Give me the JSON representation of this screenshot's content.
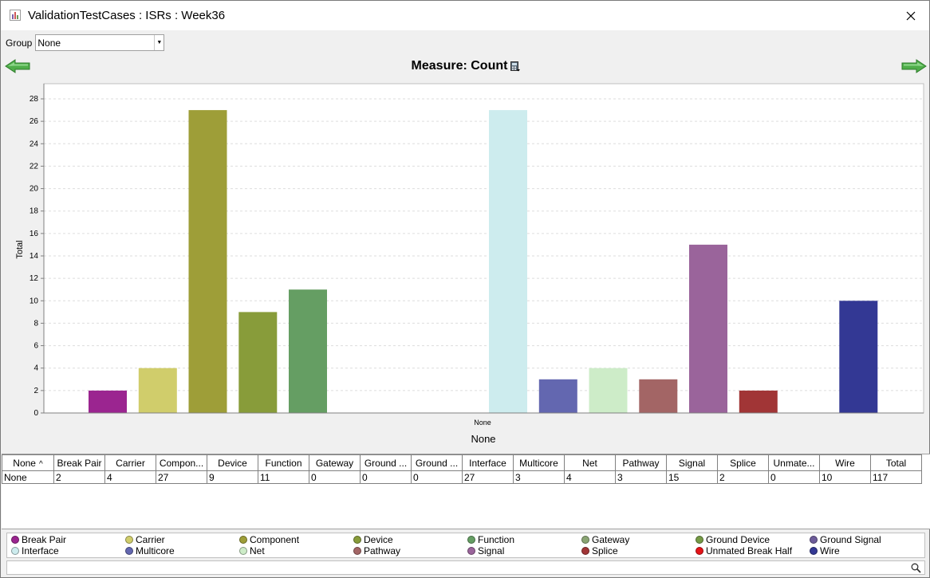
{
  "window": {
    "title": "ValidationTestCases : ISRs : Week36"
  },
  "group": {
    "label": "Group",
    "value": "None"
  },
  "measure": {
    "text": "Measure: Count"
  },
  "chart_data": {
    "type": "bar",
    "xlabel": "None",
    "ylabel": "Total",
    "ylim": [
      0,
      28
    ],
    "yticks": [
      0,
      2,
      4,
      6,
      8,
      10,
      12,
      14,
      16,
      18,
      20,
      22,
      24,
      26,
      28
    ],
    "categories": [
      "None"
    ],
    "grid": true,
    "series": [
      {
        "name": "Break Pair",
        "values": [
          2
        ],
        "color": "#9b2590"
      },
      {
        "name": "Carrier",
        "values": [
          4
        ],
        "color": "#d0cd6b"
      },
      {
        "name": "Component",
        "values": [
          27
        ],
        "color": "#9e9e38"
      },
      {
        "name": "Device",
        "values": [
          9
        ],
        "color": "#889c3a"
      },
      {
        "name": "Function",
        "values": [
          11
        ],
        "color": "#659e63"
      },
      {
        "name": "Gateway",
        "values": [
          0
        ],
        "color": "#8aa573"
      },
      {
        "name": "Ground Device",
        "values": [
          0
        ],
        "color": "#759a45"
      },
      {
        "name": "Ground Signal",
        "values": [
          0
        ],
        "color": "#6d5c9a"
      },
      {
        "name": "Interface",
        "values": [
          27
        ],
        "color": "#cdecee"
      },
      {
        "name": "Multicore",
        "values": [
          3
        ],
        "color": "#6367b0"
      },
      {
        "name": "Net",
        "values": [
          4
        ],
        "color": "#cdecc8"
      },
      {
        "name": "Pathway",
        "values": [
          3
        ],
        "color": "#a36565"
      },
      {
        "name": "Signal",
        "values": [
          15
        ],
        "color": "#9a649b"
      },
      {
        "name": "Splice",
        "values": [
          2
        ],
        "color": "#a13536"
      },
      {
        "name": "Unmated Break Half",
        "values": [
          0
        ],
        "color": "#e41317"
      },
      {
        "name": "Wire",
        "values": [
          10
        ],
        "color": "#333894"
      }
    ]
  },
  "table": {
    "headers": [
      "None",
      "Break Pair",
      "Carrier",
      "Compon...",
      "Device",
      "Function",
      "Gateway",
      "Ground ...",
      "Ground ...",
      "Interface",
      "Multicore",
      "Net",
      "Pathway",
      "Signal",
      "Splice",
      "Unmate...",
      "Wire",
      "Total"
    ],
    "rows": [
      [
        "None",
        "2",
        "4",
        "27",
        "9",
        "11",
        "0",
        "0",
        "0",
        "27",
        "3",
        "4",
        "3",
        "15",
        "2",
        "0",
        "10",
        "117"
      ]
    ]
  },
  "legend": [
    {
      "label": "Break Pair",
      "color": "#9b2590"
    },
    {
      "label": "Carrier",
      "color": "#d0cd6b"
    },
    {
      "label": "Component",
      "color": "#9e9e38"
    },
    {
      "label": "Device",
      "color": "#889c3a"
    },
    {
      "label": "Function",
      "color": "#659e63"
    },
    {
      "label": "Gateway",
      "color": "#8aa573"
    },
    {
      "label": "Ground Device",
      "color": "#759a45"
    },
    {
      "label": "Ground Signal",
      "color": "#6d5c9a"
    },
    {
      "label": "Interface",
      "color": "#cdecee"
    },
    {
      "label": "Multicore",
      "color": "#6367b0"
    },
    {
      "label": "Net",
      "color": "#cdecc8"
    },
    {
      "label": "Pathway",
      "color": "#a36565"
    },
    {
      "label": "Signal",
      "color": "#9a649b"
    },
    {
      "label": "Splice",
      "color": "#a13536"
    },
    {
      "label": "Unmated Break Half",
      "color": "#e41317"
    },
    {
      "label": "Wire",
      "color": "#333894"
    }
  ],
  "search": {
    "placeholder": ""
  },
  "icons": {
    "app": "bar-chart-icon",
    "close": "close-icon",
    "prev": "arrow-left-icon",
    "next": "arrow-right-icon",
    "calculator": "calculator-icon",
    "search": "search-icon",
    "sort": "sort-ascending-icon"
  }
}
